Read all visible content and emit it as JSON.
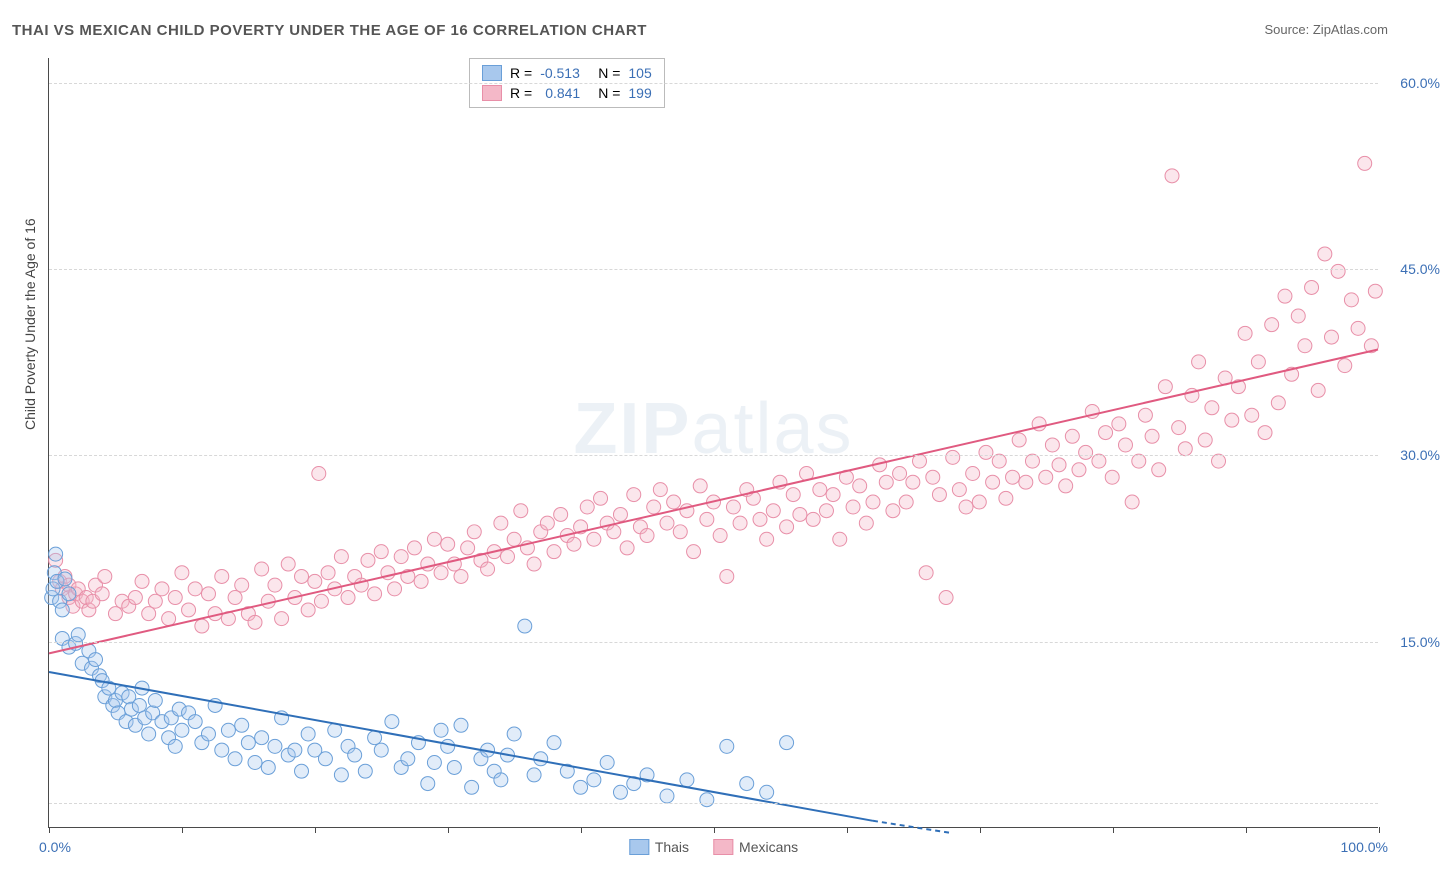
{
  "title": "THAI VS MEXICAN CHILD POVERTY UNDER THE AGE OF 16 CORRELATION CHART",
  "source_label": "Source: ",
  "source_name": "ZipAtlas.com",
  "y_axis_label": "Child Poverty Under the Age of 16",
  "watermark_bold": "ZIP",
  "watermark_light": "atlas",
  "chart": {
    "type": "scatter-with-regression",
    "xlim": [
      0,
      100
    ],
    "ylim": [
      0,
      62
    ],
    "x_ticks": [
      0,
      10,
      20,
      30,
      40,
      50,
      60,
      70,
      80,
      90,
      100
    ],
    "x_tick_labels": {
      "0": "0.0%",
      "100": "100.0%"
    },
    "y_gridlines": [
      2,
      15,
      30,
      45,
      60
    ],
    "y_tick_labels": {
      "15": "15.0%",
      "30": "30.0%",
      "45": "45.0%",
      "60": "60.0%"
    },
    "background_color": "#ffffff",
    "grid_color": "#d8d8d8",
    "axis_color": "#4a4a4a",
    "label_color": "#3b6fb5",
    "marker_radius": 7,
    "marker_opacity": 0.35,
    "line_width": 2
  },
  "series": {
    "thais": {
      "label": "Thais",
      "color_fill": "#a8c8ed",
      "color_stroke": "#6a9fd8",
      "line_color": "#2f6fb8",
      "R": "-0.513",
      "N": "105",
      "regression": {
        "x1": 0,
        "y1": 12.5,
        "x2": 62,
        "y2": 0.5
      },
      "regression_dashed": {
        "x1": 62,
        "y1": 0.5,
        "x2": 68,
        "y2": -0.5
      },
      "points": [
        [
          0.2,
          18.5
        ],
        [
          0.3,
          19.2
        ],
        [
          0.4,
          20.5
        ],
        [
          0.5,
          22
        ],
        [
          0.6,
          19.8
        ],
        [
          0.8,
          18.2
        ],
        [
          1,
          17.5
        ],
        [
          1.2,
          20
        ],
        [
          1.5,
          18.8
        ],
        [
          1,
          15.2
        ],
        [
          1.5,
          14.5
        ],
        [
          2,
          14.8
        ],
        [
          2.2,
          15.5
        ],
        [
          2.5,
          13.2
        ],
        [
          3,
          14.2
        ],
        [
          3.2,
          12.8
        ],
        [
          3.5,
          13.5
        ],
        [
          3.8,
          12.2
        ],
        [
          4,
          11.8
        ],
        [
          4.2,
          10.5
        ],
        [
          4.5,
          11.2
        ],
        [
          4.8,
          9.8
        ],
        [
          5,
          10.2
        ],
        [
          5.2,
          9.2
        ],
        [
          5.5,
          10.8
        ],
        [
          5.8,
          8.5
        ],
        [
          6,
          10.5
        ],
        [
          6.2,
          9.5
        ],
        [
          6.5,
          8.2
        ],
        [
          6.8,
          9.8
        ],
        [
          7,
          11.2
        ],
        [
          7.2,
          8.8
        ],
        [
          7.5,
          7.5
        ],
        [
          7.8,
          9.2
        ],
        [
          8,
          10.2
        ],
        [
          8.5,
          8.5
        ],
        [
          9,
          7.2
        ],
        [
          9.2,
          8.8
        ],
        [
          9.5,
          6.5
        ],
        [
          9.8,
          9.5
        ],
        [
          10,
          7.8
        ],
        [
          10.5,
          9.2
        ],
        [
          11,
          8.5
        ],
        [
          11.5,
          6.8
        ],
        [
          12,
          7.5
        ],
        [
          12.5,
          9.8
        ],
        [
          13,
          6.2
        ],
        [
          13.5,
          7.8
        ],
        [
          14,
          5.5
        ],
        [
          14.5,
          8.2
        ],
        [
          15,
          6.8
        ],
        [
          15.5,
          5.2
        ],
        [
          16,
          7.2
        ],
        [
          16.5,
          4.8
        ],
        [
          17,
          6.5
        ],
        [
          17.5,
          8.8
        ],
        [
          18,
          5.8
        ],
        [
          18.5,
          6.2
        ],
        [
          19,
          4.5
        ],
        [
          19.5,
          7.5
        ],
        [
          20,
          6.2
        ],
        [
          20.8,
          5.5
        ],
        [
          21.5,
          7.8
        ],
        [
          22,
          4.2
        ],
        [
          22.5,
          6.5
        ],
        [
          23,
          5.8
        ],
        [
          23.8,
          4.5
        ],
        [
          24.5,
          7.2
        ],
        [
          25,
          6.2
        ],
        [
          25.8,
          8.5
        ],
        [
          26.5,
          4.8
        ],
        [
          27,
          5.5
        ],
        [
          27.8,
          6.8
        ],
        [
          28.5,
          3.5
        ],
        [
          29,
          5.2
        ],
        [
          29.5,
          7.8
        ],
        [
          30,
          6.5
        ],
        [
          30.5,
          4.8
        ],
        [
          31,
          8.2
        ],
        [
          31.8,
          3.2
        ],
        [
          32.5,
          5.5
        ],
        [
          33,
          6.2
        ],
        [
          33.5,
          4.5
        ],
        [
          34,
          3.8
        ],
        [
          34.5,
          5.8
        ],
        [
          35,
          7.5
        ],
        [
          35.8,
          16.2
        ],
        [
          36.5,
          4.2
        ],
        [
          37,
          5.5
        ],
        [
          38,
          6.8
        ],
        [
          39,
          4.5
        ],
        [
          40,
          3.2
        ],
        [
          41,
          3.8
        ],
        [
          42,
          5.2
        ],
        [
          43,
          2.8
        ],
        [
          44,
          3.5
        ],
        [
          45,
          4.2
        ],
        [
          46.5,
          2.5
        ],
        [
          48,
          3.8
        ],
        [
          49.5,
          2.2
        ],
        [
          51,
          6.5
        ],
        [
          52.5,
          3.5
        ],
        [
          54,
          2.8
        ],
        [
          55.5,
          6.8
        ]
      ]
    },
    "mexicans": {
      "label": "Mexicans",
      "color_fill": "#f4b8c8",
      "color_stroke": "#e88fa8",
      "line_color": "#e05a80",
      "R": "0.841",
      "N": "199",
      "regression": {
        "x1": 0,
        "y1": 14,
        "x2": 100,
        "y2": 38.5
      },
      "points": [
        [
          0.5,
          21.5
        ],
        [
          0.8,
          19.8
        ],
        [
          1,
          19.2
        ],
        [
          1.2,
          20.2
        ],
        [
          1.5,
          18.5
        ],
        [
          1.5,
          19.5
        ],
        [
          1.8,
          17.8
        ],
        [
          2,
          18.8
        ],
        [
          2.2,
          19.2
        ],
        [
          2.5,
          18.2
        ],
        [
          2.8,
          18.5
        ],
        [
          3,
          17.5
        ],
        [
          3.3,
          18.2
        ],
        [
          3.5,
          19.5
        ],
        [
          4,
          18.8
        ],
        [
          4.2,
          20.2
        ],
        [
          5,
          17.2
        ],
        [
          5.5,
          18.2
        ],
        [
          6,
          17.8
        ],
        [
          6.5,
          18.5
        ],
        [
          7,
          19.8
        ],
        [
          7.5,
          17.2
        ],
        [
          8,
          18.2
        ],
        [
          8.5,
          19.2
        ],
        [
          9,
          16.8
        ],
        [
          9.5,
          18.5
        ],
        [
          10,
          20.5
        ],
        [
          10.5,
          17.5
        ],
        [
          11,
          19.2
        ],
        [
          11.5,
          16.2
        ],
        [
          12,
          18.8
        ],
        [
          12.5,
          17.2
        ],
        [
          13,
          20.2
        ],
        [
          13.5,
          16.8
        ],
        [
          14,
          18.5
        ],
        [
          14.5,
          19.5
        ],
        [
          15,
          17.2
        ],
        [
          15.5,
          16.5
        ],
        [
          16,
          20.8
        ],
        [
          16.5,
          18.2
        ],
        [
          17,
          19.5
        ],
        [
          17.5,
          16.8
        ],
        [
          18,
          21.2
        ],
        [
          18.5,
          18.5
        ],
        [
          19,
          20.2
        ],
        [
          19.5,
          17.5
        ],
        [
          20,
          19.8
        ],
        [
          20.3,
          28.5
        ],
        [
          20.5,
          18.2
        ],
        [
          21,
          20.5
        ],
        [
          21.5,
          19.2
        ],
        [
          22,
          21.8
        ],
        [
          22.5,
          18.5
        ],
        [
          23,
          20.2
        ],
        [
          23.5,
          19.5
        ],
        [
          24,
          21.5
        ],
        [
          24.5,
          18.8
        ],
        [
          25,
          22.2
        ],
        [
          25.5,
          20.5
        ],
        [
          26,
          19.2
        ],
        [
          26.5,
          21.8
        ],
        [
          27,
          20.2
        ],
        [
          27.5,
          22.5
        ],
        [
          28,
          19.8
        ],
        [
          28.5,
          21.2
        ],
        [
          29,
          23.2
        ],
        [
          29.5,
          20.5
        ],
        [
          30,
          22.8
        ],
        [
          30.5,
          21.2
        ],
        [
          31,
          20.2
        ],
        [
          31.5,
          22.5
        ],
        [
          32,
          23.8
        ],
        [
          32.5,
          21.5
        ],
        [
          33,
          20.8
        ],
        [
          33.5,
          22.2
        ],
        [
          34,
          24.5
        ],
        [
          34.5,
          21.8
        ],
        [
          35,
          23.2
        ],
        [
          35.5,
          25.5
        ],
        [
          36,
          22.5
        ],
        [
          36.5,
          21.2
        ],
        [
          37,
          23.8
        ],
        [
          37.5,
          24.5
        ],
        [
          38,
          22.2
        ],
        [
          38.5,
          25.2
        ],
        [
          39,
          23.5
        ],
        [
          39.5,
          22.8
        ],
        [
          40,
          24.2
        ],
        [
          40.5,
          25.8
        ],
        [
          41,
          23.2
        ],
        [
          41.5,
          26.5
        ],
        [
          42,
          24.5
        ],
        [
          42.5,
          23.8
        ],
        [
          43,
          25.2
        ],
        [
          43.5,
          22.5
        ],
        [
          44,
          26.8
        ],
        [
          44.5,
          24.2
        ],
        [
          45,
          23.5
        ],
        [
          45.5,
          25.8
        ],
        [
          46,
          27.2
        ],
        [
          46.5,
          24.5
        ],
        [
          47,
          26.2
        ],
        [
          47.5,
          23.8
        ],
        [
          48,
          25.5
        ],
        [
          48.5,
          22.2
        ],
        [
          49,
          27.5
        ],
        [
          49.5,
          24.8
        ],
        [
          50,
          26.2
        ],
        [
          50.5,
          23.5
        ],
        [
          51,
          20.2
        ],
        [
          51.5,
          25.8
        ],
        [
          52,
          24.5
        ],
        [
          52.5,
          27.2
        ],
        [
          53,
          26.5
        ],
        [
          53.5,
          24.8
        ],
        [
          54,
          23.2
        ],
        [
          54.5,
          25.5
        ],
        [
          55,
          27.8
        ],
        [
          55.5,
          24.2
        ],
        [
          56,
          26.8
        ],
        [
          56.5,
          25.2
        ],
        [
          57,
          28.5
        ],
        [
          57.5,
          24.8
        ],
        [
          58,
          27.2
        ],
        [
          58.5,
          25.5
        ],
        [
          59,
          26.8
        ],
        [
          59.5,
          23.2
        ],
        [
          60,
          28.2
        ],
        [
          60.5,
          25.8
        ],
        [
          61,
          27.5
        ],
        [
          61.5,
          24.5
        ],
        [
          62,
          26.2
        ],
        [
          62.5,
          29.2
        ],
        [
          63,
          27.8
        ],
        [
          63.5,
          25.5
        ],
        [
          64,
          28.5
        ],
        [
          64.5,
          26.2
        ],
        [
          65,
          27.8
        ],
        [
          65.5,
          29.5
        ],
        [
          66,
          20.5
        ],
        [
          66.5,
          28.2
        ],
        [
          67,
          26.8
        ],
        [
          67.5,
          18.5
        ],
        [
          68,
          29.8
        ],
        [
          68.5,
          27.2
        ],
        [
          69,
          25.8
        ],
        [
          69.5,
          28.5
        ],
        [
          70,
          26.2
        ],
        [
          70.5,
          30.2
        ],
        [
          71,
          27.8
        ],
        [
          71.5,
          29.5
        ],
        [
          72,
          26.5
        ],
        [
          72.5,
          28.2
        ],
        [
          73,
          31.2
        ],
        [
          73.5,
          27.8
        ],
        [
          74,
          29.5
        ],
        [
          74.5,
          32.5
        ],
        [
          75,
          28.2
        ],
        [
          75.5,
          30.8
        ],
        [
          76,
          29.2
        ],
        [
          76.5,
          27.5
        ],
        [
          77,
          31.5
        ],
        [
          77.5,
          28.8
        ],
        [
          78,
          30.2
        ],
        [
          78.5,
          33.5
        ],
        [
          79,
          29.5
        ],
        [
          79.5,
          31.8
        ],
        [
          80,
          28.2
        ],
        [
          80.5,
          32.5
        ],
        [
          81,
          30.8
        ],
        [
          81.5,
          26.2
        ],
        [
          82,
          29.5
        ],
        [
          82.5,
          33.2
        ],
        [
          83,
          31.5
        ],
        [
          83.5,
          28.8
        ],
        [
          84,
          35.5
        ],
        [
          84.5,
          52.5
        ],
        [
          85,
          32.2
        ],
        [
          85.5,
          30.5
        ],
        [
          86,
          34.8
        ],
        [
          86.5,
          37.5
        ],
        [
          87,
          31.2
        ],
        [
          87.5,
          33.8
        ],
        [
          88,
          29.5
        ],
        [
          88.5,
          36.2
        ],
        [
          89,
          32.8
        ],
        [
          89.5,
          35.5
        ],
        [
          90,
          39.8
        ],
        [
          90.5,
          33.2
        ],
        [
          91,
          37.5
        ],
        [
          91.5,
          31.8
        ],
        [
          92,
          40.5
        ],
        [
          92.5,
          34.2
        ],
        [
          93,
          42.8
        ],
        [
          93.5,
          36.5
        ],
        [
          94,
          41.2
        ],
        [
          94.5,
          38.8
        ],
        [
          95,
          43.5
        ],
        [
          95.5,
          35.2
        ],
        [
          96,
          46.2
        ],
        [
          96.5,
          39.5
        ],
        [
          97,
          44.8
        ],
        [
          97.5,
          37.2
        ],
        [
          98,
          42.5
        ],
        [
          98.5,
          40.2
        ],
        [
          99,
          53.5
        ],
        [
          99.5,
          38.8
        ],
        [
          99.8,
          43.2
        ]
      ]
    }
  },
  "legend_top": {
    "R_label": "R =",
    "N_label": "N ="
  }
}
